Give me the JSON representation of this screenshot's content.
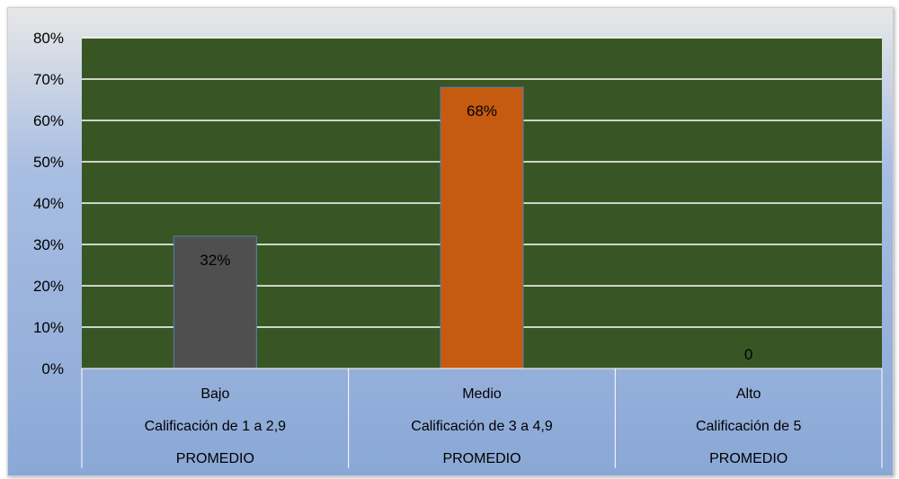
{
  "chart_data": {
    "type": "bar",
    "categories": [
      [
        "Bajo",
        "Calificación de 1 a 2,9",
        "PROMEDIO"
      ],
      [
        "Medio",
        "Calificación de 3 a 4,9",
        "PROMEDIO"
      ],
      [
        "Alto",
        "Calificación de 5",
        "PROMEDIO"
      ]
    ],
    "values": [
      0.32,
      0.68,
      0
    ],
    "data_labels": [
      "32%",
      "68%",
      "0"
    ],
    "bar_colors": [
      "#4f4f4f",
      "#c55a11",
      "#375623"
    ],
    "plot_background": "#375623",
    "gridline_color": "#ffffff",
    "ylim": [
      0,
      0.8
    ],
    "y_ticks": [
      0,
      0.1,
      0.2,
      0.3,
      0.4,
      0.5,
      0.6,
      0.7,
      0.8
    ],
    "y_tick_labels": [
      "0%",
      "10%",
      "20%",
      "30%",
      "40%",
      "50%",
      "60%",
      "70%",
      "80%"
    ],
    "grid": true,
    "legend": "none",
    "title": "",
    "xlabel": "",
    "ylabel": ""
  }
}
